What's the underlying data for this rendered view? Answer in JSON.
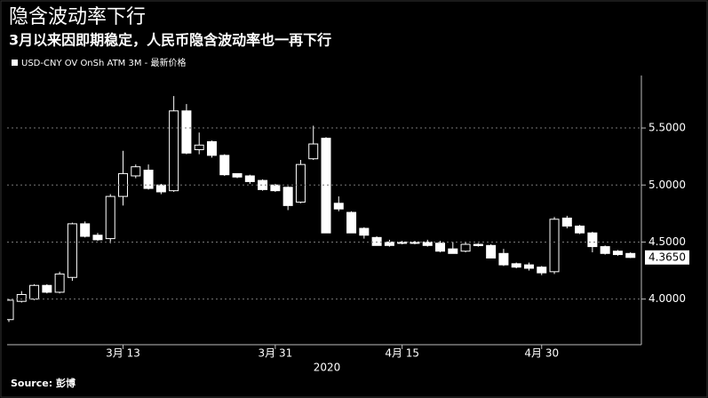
{
  "chart_data": {
    "type": "candlestick",
    "title": "隐含波动率下行",
    "subtitle": "3月以来因即期稳定，人民币隐含波动率也一再下行",
    "source": "Source: 彭博",
    "xlabel": "2020",
    "categories": [
      null,
      null,
      null,
      null,
      null,
      null,
      null,
      null,
      null,
      "3月 13",
      null,
      null,
      null,
      null,
      null,
      null,
      null,
      null,
      null,
      null,
      null,
      "3月 31",
      null,
      null,
      null,
      null,
      null,
      null,
      null,
      null,
      null,
      "4月 15",
      null,
      null,
      null,
      null,
      null,
      null,
      null,
      null,
      null,
      null,
      "4月 30",
      null,
      null,
      null,
      null,
      null,
      null,
      null
    ],
    "series": [
      {
        "name": "USD-CNY OV OnSh ATM 3M - 最新价格",
        "up_color": "#000000",
        "down_color": "#ffffff",
        "open": [
          3.82,
          3.98,
          4.0,
          4.12,
          4.06,
          4.19,
          4.66,
          4.56,
          4.53,
          4.9,
          5.08,
          5.13,
          5.0,
          4.95,
          5.65,
          5.31,
          5.38,
          5.26,
          5.1,
          5.08,
          5.04,
          5.0,
          4.98,
          4.85,
          5.23,
          5.41,
          4.84,
          4.76,
          4.62,
          4.54,
          4.5,
          4.5,
          4.5,
          4.5,
          4.49,
          4.44,
          4.42,
          4.48,
          4.47,
          4.4,
          4.31,
          4.3,
          4.28,
          4.24,
          4.71,
          4.64,
          4.58,
          4.46,
          4.42,
          4.4
        ],
        "high": [
          4.0,
          4.07,
          4.13,
          4.13,
          4.24,
          4.67,
          4.68,
          4.58,
          4.92,
          5.3,
          5.18,
          5.18,
          5.01,
          5.78,
          5.71,
          5.46,
          5.39,
          5.27,
          5.1,
          5.09,
          5.05,
          5.01,
          4.99,
          5.22,
          5.52,
          5.42,
          4.9,
          4.77,
          4.63,
          4.55,
          4.52,
          4.51,
          4.51,
          4.52,
          4.51,
          4.5,
          4.5,
          4.49,
          4.48,
          4.44,
          4.32,
          4.32,
          4.29,
          4.72,
          4.73,
          4.65,
          4.59,
          4.47,
          4.43,
          4.41
        ],
        "low": [
          3.8,
          3.97,
          3.99,
          4.05,
          4.05,
          4.16,
          4.54,
          4.51,
          4.49,
          4.82,
          5.06,
          4.96,
          4.92,
          4.94,
          5.27,
          5.27,
          5.24,
          5.08,
          5.06,
          5.01,
          4.95,
          4.94,
          4.78,
          4.84,
          5.22,
          4.58,
          4.77,
          4.58,
          4.53,
          4.47,
          4.46,
          4.48,
          4.48,
          4.46,
          4.41,
          4.4,
          4.41,
          4.46,
          4.36,
          4.29,
          4.27,
          4.25,
          4.21,
          4.22,
          4.62,
          4.57,
          4.41,
          4.39,
          4.38,
          4.36
        ],
        "close": [
          3.99,
          4.04,
          4.12,
          4.06,
          4.22,
          4.66,
          4.55,
          4.52,
          4.9,
          5.1,
          5.16,
          4.97,
          4.94,
          5.65,
          5.28,
          5.35,
          5.26,
          5.09,
          5.07,
          5.03,
          4.96,
          4.95,
          4.82,
          5.18,
          5.36,
          4.58,
          4.79,
          4.58,
          4.56,
          4.47,
          4.47,
          4.49,
          4.49,
          4.47,
          4.42,
          4.4,
          4.48,
          4.47,
          4.36,
          4.3,
          4.28,
          4.27,
          4.23,
          4.7,
          4.64,
          4.58,
          4.46,
          4.4,
          4.39,
          4.365
        ]
      }
    ],
    "last_value": 4.365,
    "last_value_label": "4.3650",
    "ylim": [
      3.6,
      5.96
    ],
    "yticks": [
      {
        "value": 4.0,
        "label": "4.0000"
      },
      {
        "value": 4.5,
        "label": "4.5000"
      },
      {
        "value": 5.0,
        "label": "5.0000"
      },
      {
        "value": 5.5,
        "label": "5.5000"
      }
    ],
    "grid": true
  }
}
